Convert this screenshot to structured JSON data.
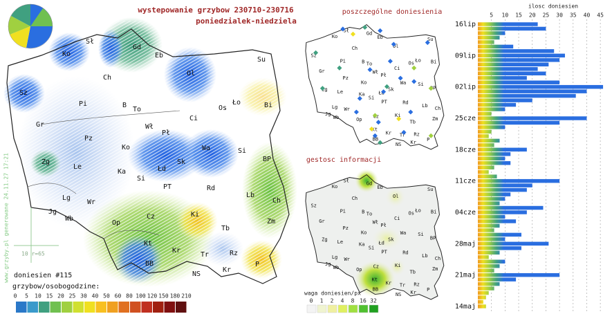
{
  "header": {
    "title": "wystepowanie grzybow 230710-230716",
    "subtitle": "poniedzialek-niedziela"
  },
  "map_labels": [
    "Sł",
    "Gd",
    "Ko",
    "Eb",
    "Su",
    "Ch",
    "Ol",
    "Sz",
    "Pi",
    "B",
    "To",
    "Ło",
    "Os",
    "Bi",
    "Ci",
    "Gr",
    "Wł",
    "Pł",
    "Pz",
    "Ko",
    "Wa",
    "Si",
    "Sk",
    "BP",
    "Zg",
    "Le",
    "Łd",
    "Ka",
    "Si",
    "PT",
    "Rd",
    "Lb",
    "Lg",
    "Ch",
    "Wr",
    "Jg",
    "Ki",
    "Cz",
    "Wb",
    "Zm",
    "Op",
    "Tb",
    "Kt",
    "Kr",
    "Rz",
    "Tr",
    "BB",
    "P",
    "Kr",
    "NS"
  ],
  "points_map": {
    "title": "poszczególne doniesienia"
  },
  "density_map": {
    "title": "gestosc informacji",
    "legend_title": "waga doniesien/px",
    "legend": [
      0,
      1,
      2,
      4,
      8,
      16,
      32
    ]
  },
  "report_count": "doniesien #115",
  "scale_title": "grzybow/osobogodzine:",
  "scale": [
    0,
    5,
    10,
    15,
    20,
    25,
    30,
    40,
    50,
    60,
    80,
    100,
    120,
    150,
    180,
    210
  ],
  "scale_marker": "10 r=65",
  "footer": "www.grzyby.pl generowane 24.11.27 17:21",
  "chart_data": {
    "type": "bar",
    "orientation": "horizontal",
    "title": "ilosc doniesien",
    "categories": [
      "16lip",
      null,
      null,
      null,
      null,
      null,
      null,
      "09lip",
      null,
      null,
      null,
      null,
      null,
      null,
      "02lip",
      null,
      null,
      null,
      null,
      null,
      null,
      "25cze",
      null,
      null,
      null,
      null,
      null,
      null,
      "18cze",
      null,
      null,
      null,
      null,
      null,
      null,
      "11cze",
      null,
      null,
      null,
      null,
      null,
      null,
      "04cze",
      null,
      null,
      null,
      null,
      null,
      null,
      "28maj",
      null,
      null,
      null,
      null,
      null,
      null,
      "21maj",
      null,
      null,
      null,
      null,
      null,
      null,
      "14maj"
    ],
    "values": [
      22,
      25,
      10,
      8,
      6,
      13,
      28,
      32,
      30,
      26,
      22,
      25,
      18,
      30,
      46,
      40,
      36,
      20,
      14,
      10,
      5,
      40,
      30,
      10,
      5,
      4,
      8,
      6,
      18,
      12,
      10,
      12,
      6,
      4,
      7,
      30,
      20,
      18,
      12,
      10,
      8,
      24,
      18,
      10,
      14,
      8,
      6,
      16,
      10,
      26,
      16,
      8,
      4,
      10,
      8,
      6,
      30,
      14,
      8,
      6,
      4,
      3,
      2,
      3
    ],
    "xlim": [
      0,
      47
    ],
    "xticks": [
      5,
      10,
      15,
      20,
      25,
      30,
      35,
      40,
      45
    ],
    "grid": true
  }
}
